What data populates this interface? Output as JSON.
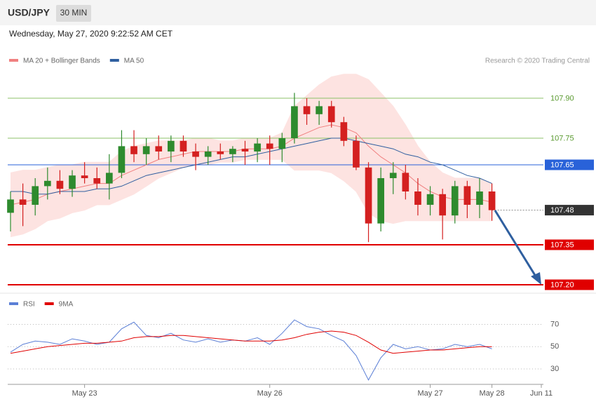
{
  "chart_data": {
    "type": "candlestick",
    "title": "USD/JPY",
    "timeframe": "30 MIN",
    "subtitle": "Wednesday, May 27, 2020 9:22:52 AM CET",
    "credit": "Research © 2020 Trading Central",
    "categories": [
      null,
      null,
      null,
      null,
      null,
      null,
      "May 23",
      null,
      null,
      null,
      null,
      null,
      null,
      null,
      null,
      null,
      null,
      null,
      null,
      null,
      null,
      "May 26",
      null,
      null,
      null,
      null,
      null,
      null,
      null,
      null,
      null,
      null,
      null,
      null,
      "May 27",
      null,
      null,
      null,
      null,
      "May 28",
      null,
      null,
      null,
      "Jun 11"
    ],
    "open": [
      107.47,
      107.52,
      107.5,
      107.57,
      107.59,
      107.56,
      107.61,
      107.6,
      107.58,
      107.62,
      107.72,
      107.69,
      107.72,
      107.7,
      107.74,
      107.7,
      107.68,
      107.7,
      107.69,
      107.71,
      107.7,
      107.73,
      107.71,
      107.75,
      107.87,
      107.84,
      107.87,
      107.81,
      107.74,
      107.64,
      107.43,
      107.6,
      107.62,
      107.55,
      107.5,
      107.54,
      107.46,
      107.57,
      107.5,
      107.55,
      null,
      null,
      null,
      null
    ],
    "high": [
      107.55,
      107.58,
      107.6,
      107.64,
      107.63,
      107.63,
      107.66,
      107.64,
      107.69,
      107.78,
      107.78,
      107.75,
      107.76,
      107.76,
      107.76,
      107.73,
      107.72,
      107.73,
      107.72,
      107.74,
      107.75,
      107.76,
      107.77,
      107.92,
      107.9,
      107.89,
      107.89,
      107.83,
      107.76,
      107.66,
      107.64,
      107.66,
      107.65,
      107.6,
      107.57,
      107.56,
      107.59,
      107.59,
      107.6,
      107.58,
      null,
      null,
      null,
      null
    ],
    "low": [
      107.4,
      107.42,
      107.46,
      107.52,
      107.54,
      107.53,
      107.58,
      107.56,
      107.52,
      107.6,
      107.66,
      107.65,
      107.67,
      107.66,
      107.68,
      107.63,
      107.65,
      107.67,
      107.66,
      107.65,
      107.66,
      107.65,
      107.66,
      107.73,
      107.8,
      107.8,
      107.79,
      107.72,
      107.63,
      107.36,
      107.4,
      107.54,
      107.52,
      107.46,
      107.46,
      107.37,
      107.43,
      107.45,
      107.45,
      107.44,
      null,
      null,
      null,
      null
    ],
    "close": [
      107.52,
      107.5,
      107.57,
      107.59,
      107.56,
      107.61,
      107.6,
      107.58,
      107.62,
      107.72,
      107.69,
      107.72,
      107.7,
      107.74,
      107.7,
      107.68,
      107.7,
      107.69,
      107.71,
      107.7,
      107.73,
      107.71,
      107.75,
      107.87,
      107.84,
      107.87,
      107.81,
      107.74,
      107.64,
      107.43,
      107.6,
      107.62,
      107.55,
      107.5,
      107.54,
      107.46,
      107.57,
      107.5,
      107.55,
      107.48,
      null,
      null,
      null,
      null
    ],
    "up_color": "#2e8b2e",
    "down_color": "#d42020",
    "series": [
      {
        "name": "MA 20 + Bollinger Bands",
        "color": "#f08080",
        "band_color": "#fde3e1",
        "values": [
          107.5,
          107.51,
          107.52,
          107.54,
          107.55,
          107.56,
          107.57,
          107.58,
          107.58,
          107.61,
          107.63,
          107.65,
          107.67,
          107.68,
          107.69,
          107.7,
          107.7,
          107.7,
          107.7,
          107.71,
          107.71,
          107.71,
          107.72,
          107.75,
          107.77,
          107.79,
          107.8,
          107.79,
          107.77,
          107.72,
          107.68,
          107.65,
          107.62,
          107.58,
          107.55,
          107.53,
          107.52,
          107.52,
          107.52,
          107.51,
          null,
          null,
          null,
          null
        ],
        "upper": [
          107.62,
          107.63,
          107.63,
          107.64,
          107.65,
          107.65,
          107.66,
          107.66,
          107.66,
          107.7,
          107.72,
          107.73,
          107.74,
          107.74,
          107.74,
          107.75,
          107.75,
          107.74,
          107.74,
          107.75,
          107.75,
          107.75,
          107.77,
          107.87,
          107.91,
          107.95,
          107.98,
          107.99,
          107.99,
          107.97,
          107.92,
          107.87,
          107.8,
          107.72,
          107.66,
          107.62,
          107.6,
          107.6,
          107.6,
          107.58,
          null,
          null,
          null,
          null
        ],
        "lower": [
          107.38,
          107.39,
          107.41,
          107.44,
          107.45,
          107.47,
          107.48,
          107.5,
          107.5,
          107.52,
          107.54,
          107.57,
          107.6,
          107.62,
          107.64,
          107.65,
          107.65,
          107.66,
          107.66,
          107.67,
          107.67,
          107.67,
          107.67,
          107.63,
          107.63,
          107.63,
          107.62,
          107.59,
          107.55,
          107.47,
          107.44,
          107.43,
          107.44,
          107.44,
          107.44,
          107.44,
          107.44,
          107.44,
          107.44,
          107.44,
          null,
          null,
          null,
          null
        ]
      },
      {
        "name": "MA 50",
        "color": "#2f5fa0",
        "values": [
          107.55,
          107.55,
          107.54,
          107.54,
          107.55,
          107.55,
          107.55,
          107.56,
          107.56,
          107.57,
          107.59,
          107.61,
          107.62,
          107.63,
          107.64,
          107.65,
          107.66,
          107.67,
          107.68,
          107.68,
          107.69,
          107.7,
          107.71,
          107.72,
          107.73,
          107.74,
          107.75,
          107.75,
          107.74,
          107.73,
          107.72,
          107.71,
          107.69,
          107.68,
          107.66,
          107.65,
          107.63,
          107.61,
          107.6,
          107.58,
          null,
          null,
          null,
          null
        ]
      }
    ],
    "levels": [
      {
        "value": 107.9,
        "label": "107.90",
        "color": "#8cc068",
        "boxed": false,
        "width": 1
      },
      {
        "value": 107.75,
        "label": "107.75",
        "color": "#8cc068",
        "boxed": false,
        "width": 1
      },
      {
        "value": 107.65,
        "label": "107.65",
        "color": "#2962d9",
        "boxed": true,
        "width": 1
      },
      {
        "value": 107.48,
        "label": "107.48",
        "color": "#333333",
        "boxed": true,
        "width": 1,
        "dashed": true
      },
      {
        "value": 107.35,
        "label": "107.35",
        "color": "#e00000",
        "boxed": true,
        "width": 2
      },
      {
        "value": 107.2,
        "label": "107.20",
        "color": "#e00000",
        "boxed": true,
        "width": 2
      }
    ],
    "ylim": [
      107.18,
      108.0
    ],
    "rsi": {
      "series": [
        {
          "name": "RSI",
          "color": "#5b7fd6",
          "values": [
            45,
            52,
            55,
            54,
            52,
            57,
            55,
            52,
            54,
            66,
            72,
            60,
            58,
            62,
            56,
            54,
            57,
            54,
            56,
            55,
            58,
            52,
            62,
            74,
            68,
            66,
            60,
            55,
            42,
            20,
            40,
            52,
            48,
            50,
            47,
            48,
            52,
            50,
            52,
            48,
            null,
            null,
            null,
            null
          ]
        },
        {
          "name": "9MA",
          "color": "#e00000",
          "values": [
            44,
            46,
            48,
            50,
            51,
            52,
            53,
            53,
            54,
            55,
            58,
            59,
            59,
            60,
            60,
            59,
            58,
            57,
            56,
            55,
            55,
            55,
            56,
            58,
            61,
            63,
            64,
            63,
            60,
            54,
            47,
            44,
            45,
            46,
            47,
            47,
            48,
            49,
            50,
            50,
            null,
            null,
            null,
            null
          ]
        }
      ],
      "ylim": [
        18,
        81
      ],
      "yticks": [
        30,
        50,
        70
      ]
    }
  }
}
